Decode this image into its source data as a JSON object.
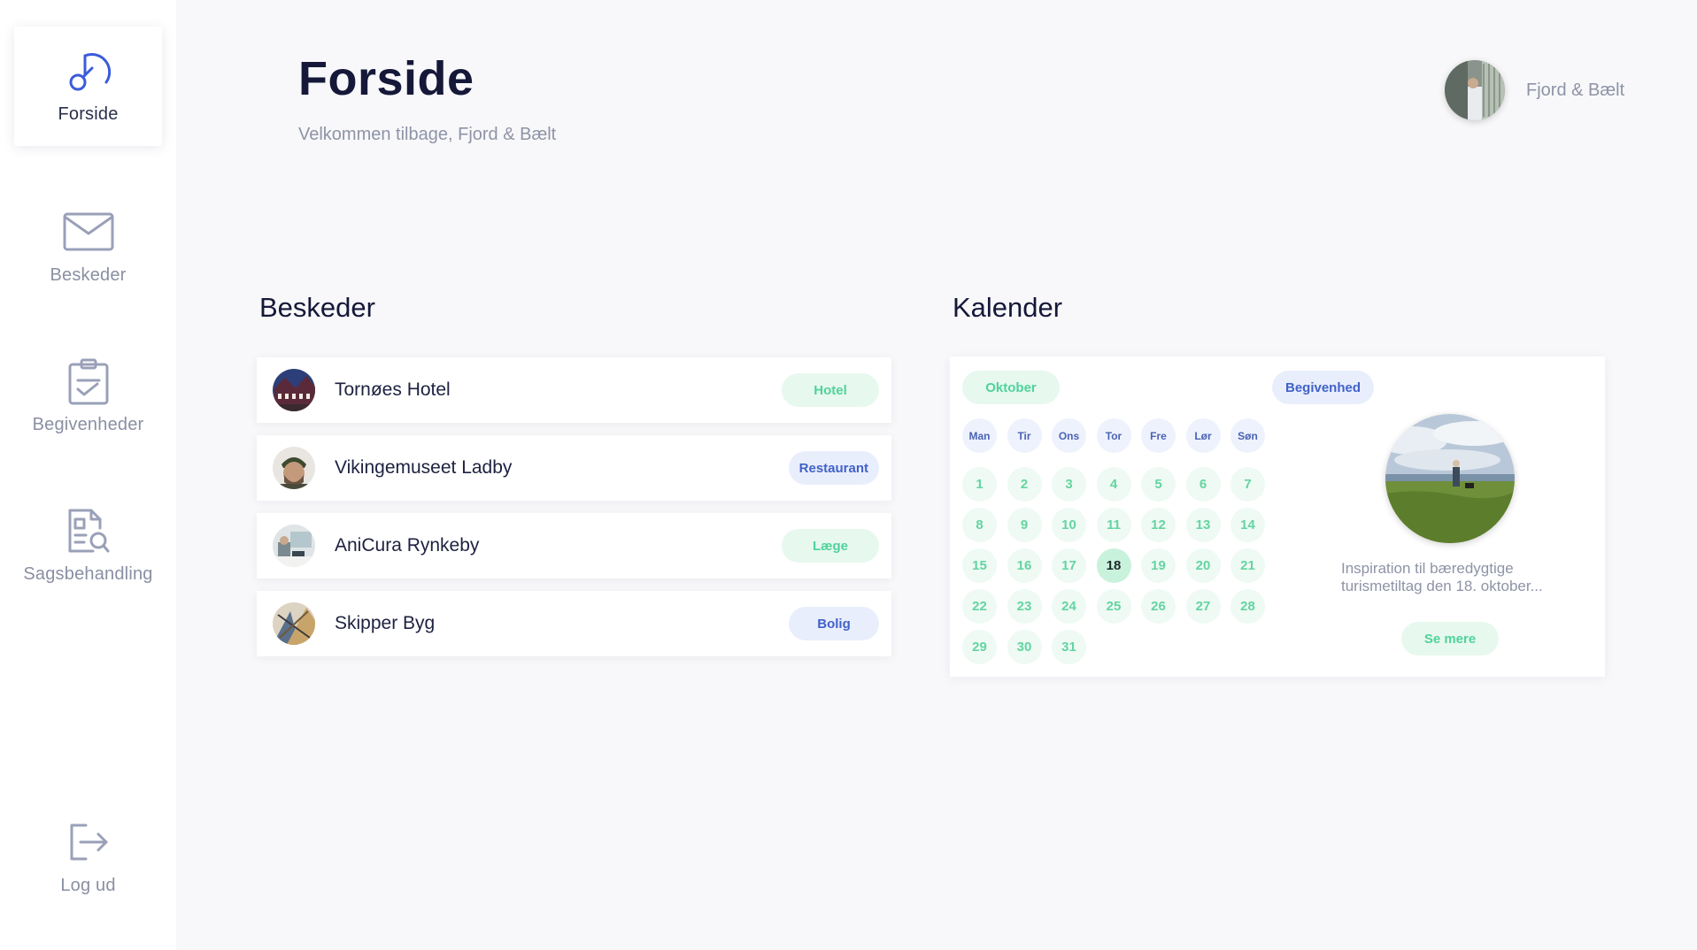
{
  "sidebar": {
    "items": [
      {
        "label": "Forside",
        "icon": "dashboard-gauge-icon"
      },
      {
        "label": "Beskeder",
        "icon": "envelope-icon"
      },
      {
        "label": "Begivenheder",
        "icon": "clipboard-check-icon"
      },
      {
        "label": "Sagsbehandling",
        "icon": "document-search-icon"
      }
    ],
    "logout": {
      "label": "Log ud",
      "icon": "logout-icon"
    }
  },
  "header": {
    "title": "Forside",
    "subtitle": "Velkommen tilbage, Fjord & Bælt",
    "profile_name": "Fjord & Bælt"
  },
  "messages": {
    "title": "Beskeder",
    "items": [
      {
        "name": "Tornøes Hotel",
        "tag": "Hotel",
        "tag_color": "green"
      },
      {
        "name": "Vikingemuseet Ladby",
        "tag": "Restaurant",
        "tag_color": "blue"
      },
      {
        "name": "AniCura Rynkeby",
        "tag": "Læge",
        "tag_color": "green"
      },
      {
        "name": "Skipper Byg",
        "tag": "Bolig",
        "tag_color": "blue"
      }
    ]
  },
  "calendar": {
    "title": "Kalender",
    "month": "Oktober",
    "weekdays": [
      "Man",
      "Tir",
      "Ons",
      "Tor",
      "Fre",
      "Lør",
      "Søn"
    ],
    "days": [
      "1",
      "2",
      "3",
      "4",
      "5",
      "6",
      "7",
      "8",
      "9",
      "10",
      "11",
      "12",
      "13",
      "14",
      "15",
      "16",
      "17",
      "18",
      "19",
      "20",
      "21",
      "22",
      "23",
      "24",
      "25",
      "26",
      "27",
      "28",
      "29",
      "30",
      "31"
    ],
    "selected_day": "18",
    "event": {
      "tag": "Begivenhed",
      "description": "Inspiration til bæredygtige turismetiltag den 18. oktober...",
      "button": "Se mere"
    }
  },
  "colors": {
    "accent_green": "#4fd39a",
    "accent_blue": "#4162c9",
    "icon_active": "#3b5bdb",
    "icon_inactive": "#9aa0b8"
  }
}
